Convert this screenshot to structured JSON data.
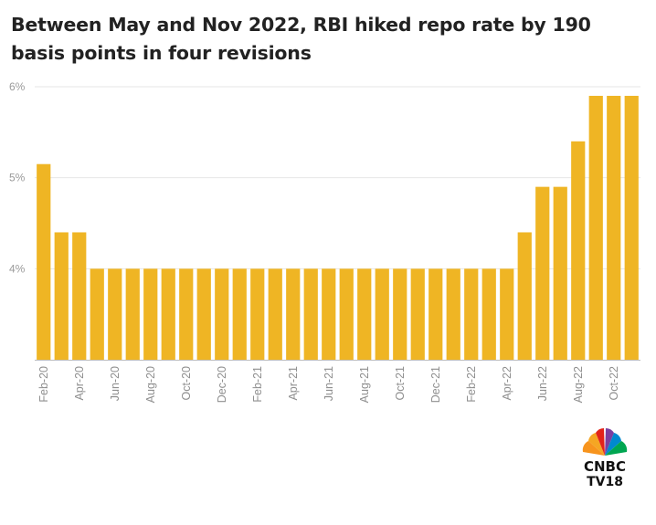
{
  "header": {
    "title": "Between May and Nov 2022, RBI hiked repo rate by 190 basis points in four revisions"
  },
  "logo": {
    "line1": "CNBC",
    "line2": "TV18"
  },
  "colors": {
    "bar": "#efb524",
    "grid": "#e6e6e6",
    "axis": "#bdbdbd"
  },
  "chart_data": {
    "type": "bar",
    "title": "Between May and Nov 2022, RBI hiked repo rate by 190 basis points in four revisions",
    "xlabel": "",
    "ylabel": "",
    "ylim": [
      3,
      6
    ],
    "yticks": [
      {
        "value": 4,
        "label": "4%"
      },
      {
        "value": 5,
        "label": "5%"
      },
      {
        "value": 6,
        "label": "6%"
      }
    ],
    "categories": [
      "Feb-20",
      "Mar-20",
      "Apr-20",
      "May-20",
      "Jun-20",
      "Jul-20",
      "Aug-20",
      "Sep-20",
      "Oct-20",
      "Nov-20",
      "Dec-20",
      "Jan-21",
      "Feb-21",
      "Mar-21",
      "Apr-21",
      "May-21",
      "Jun-21",
      "Jul-21",
      "Aug-21",
      "Sep-21",
      "Oct-21",
      "Nov-21",
      "Dec-21",
      "Jan-22",
      "Feb-22",
      "Mar-22",
      "Apr-22",
      "May-22",
      "Jun-22",
      "Jul-22",
      "Aug-22",
      "Sep-22",
      "Oct-22",
      "Nov-22"
    ],
    "x_tick_labels": [
      "Feb-20",
      "",
      "Apr-20",
      "",
      "Jun-20",
      "",
      "Aug-20",
      "",
      "Oct-20",
      "",
      "Dec-20",
      "",
      "Feb-21",
      "",
      "Apr-21",
      "",
      "Jun-21",
      "",
      "Aug-21",
      "",
      "Oct-21",
      "",
      "Dec-21",
      "",
      "Feb-22",
      "",
      "Apr-22",
      "",
      "Jun-22",
      "",
      "Aug-22",
      "",
      "Oct-22",
      ""
    ],
    "values": [
      5.15,
      4.4,
      4.4,
      4.0,
      4.0,
      4.0,
      4.0,
      4.0,
      4.0,
      4.0,
      4.0,
      4.0,
      4.0,
      4.0,
      4.0,
      4.0,
      4.0,
      4.0,
      4.0,
      4.0,
      4.0,
      4.0,
      4.0,
      4.0,
      4.0,
      4.0,
      4.0,
      4.4,
      4.9,
      4.9,
      5.4,
      5.9,
      5.9,
      5.9
    ],
    "grid": true,
    "legend": "none"
  }
}
